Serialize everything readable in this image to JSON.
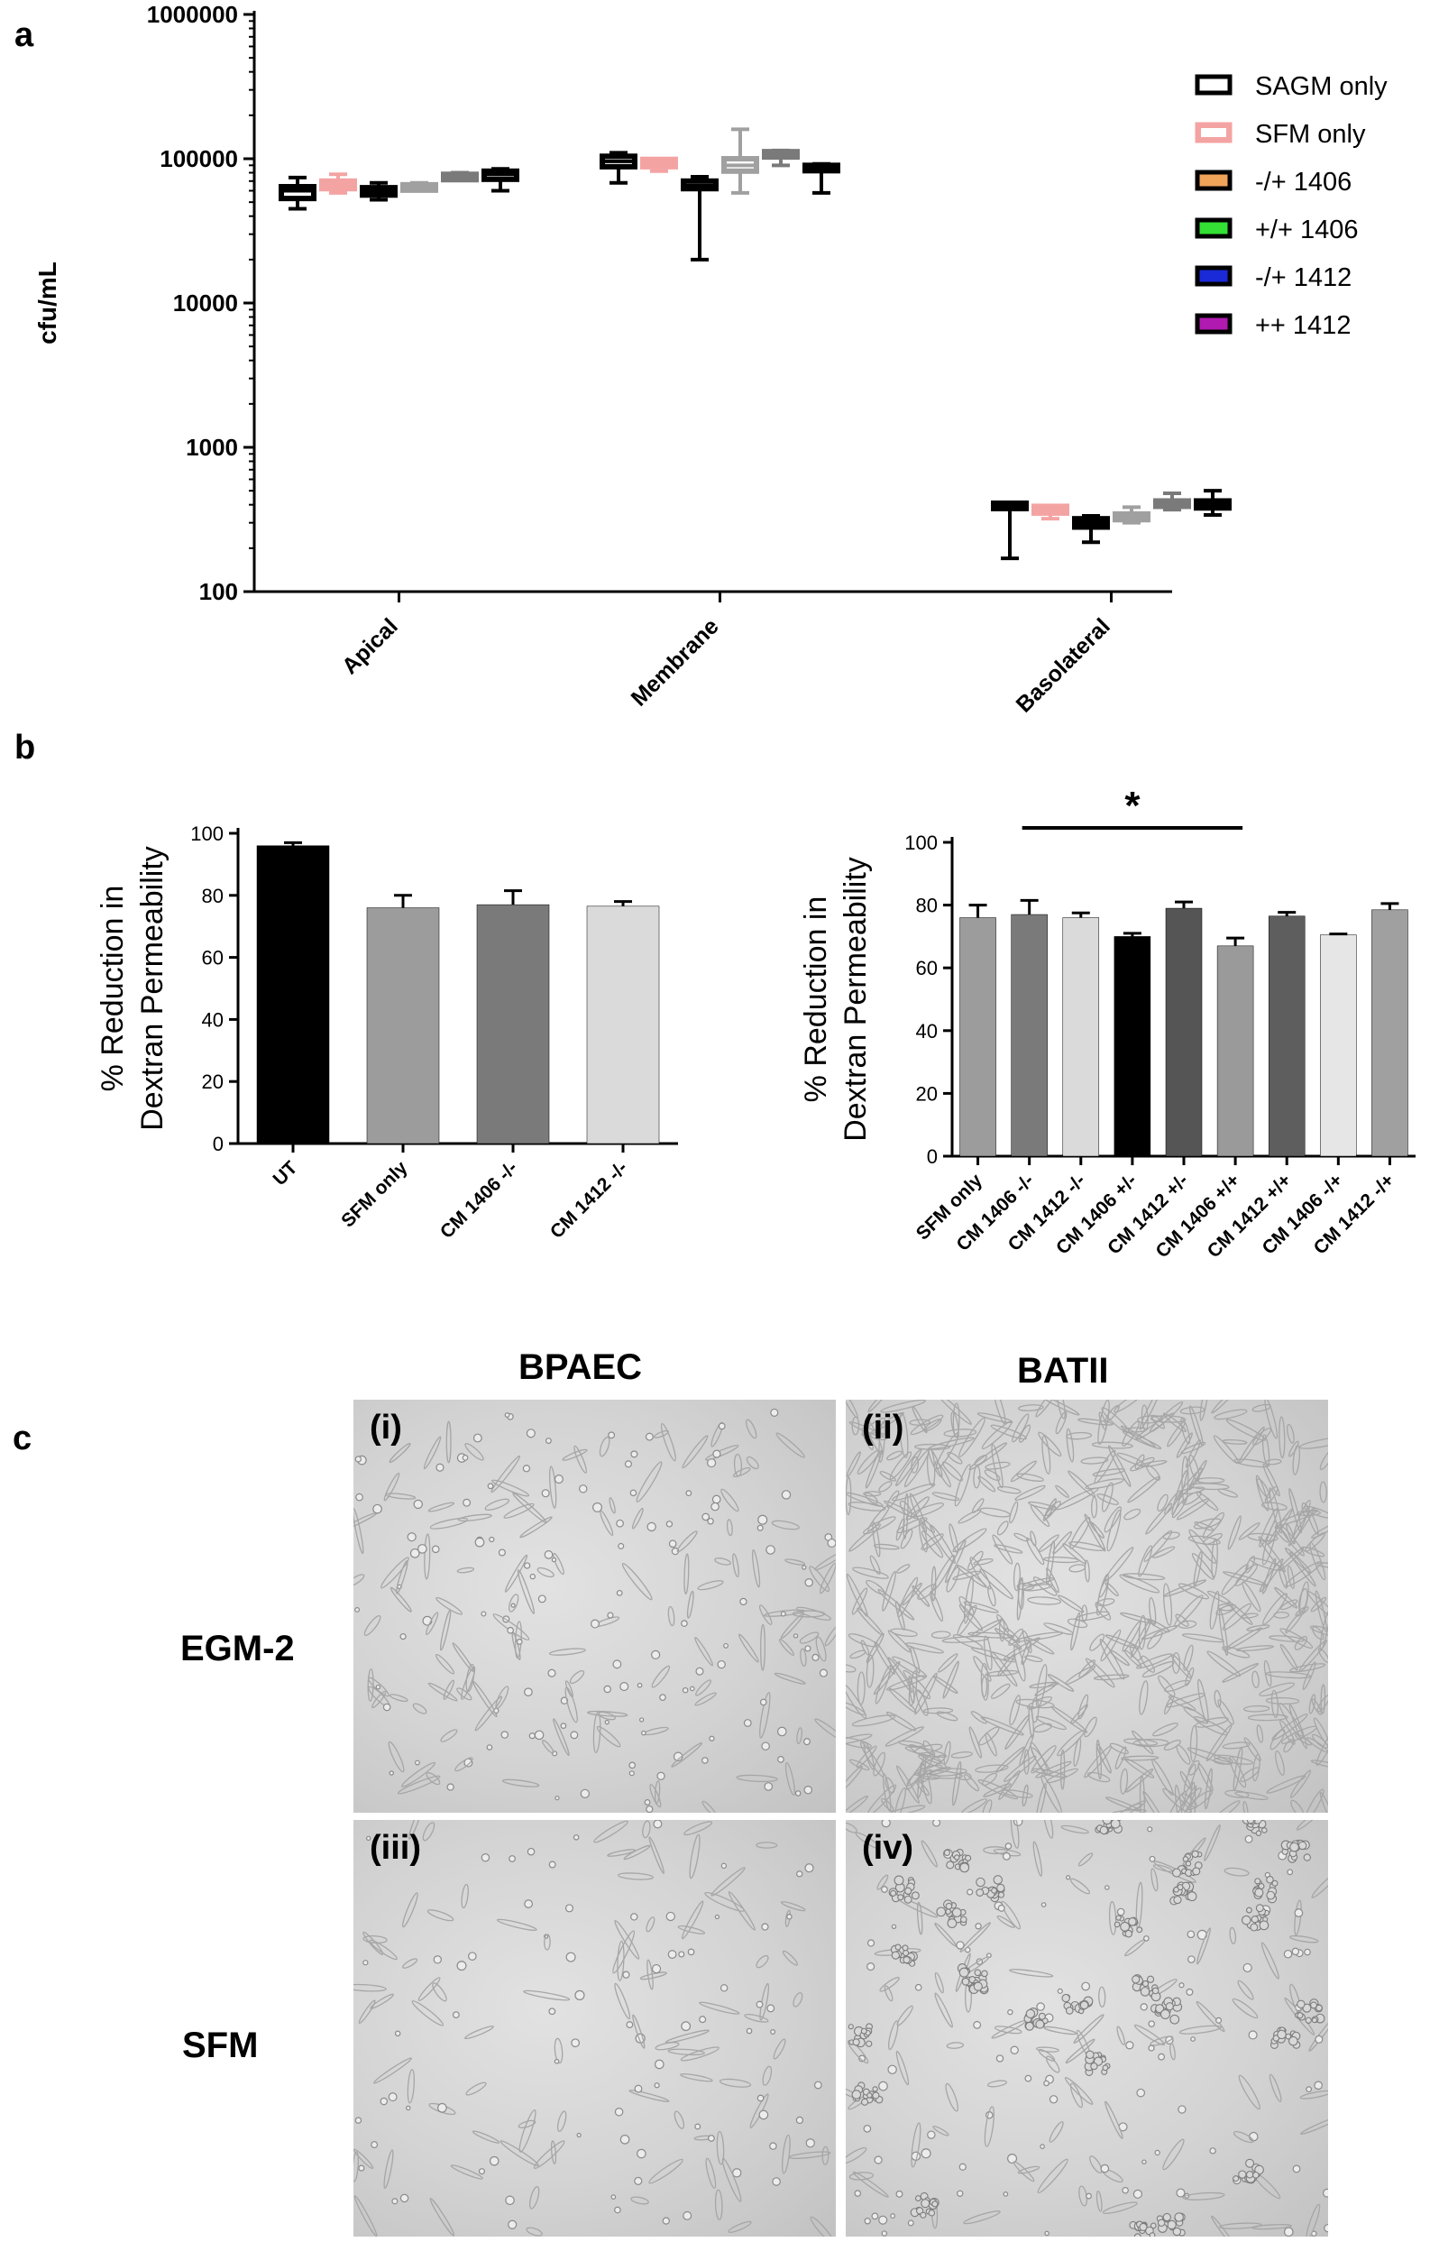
{
  "panels": {
    "a": "a",
    "b": "b",
    "c": "c"
  },
  "chart_data": [
    {
      "id": "a",
      "type": "box",
      "ylabel": "cfu/mL",
      "yscale": "log",
      "ylim": [
        100,
        1000000
      ],
      "yticks": [
        "100",
        "1000",
        "10000",
        "100000",
        "1000000"
      ],
      "categories": [
        "Apical",
        "Membrane",
        "Basolateral"
      ],
      "legend_position": "top-right",
      "series": [
        {
          "name": "SAGM only",
          "color": "#000000",
          "boxes": [
            {
              "min": 45000,
              "q1": 53000,
              "median": 60000,
              "q3": 64000,
              "max": 74000
            },
            {
              "min": 68000,
              "q1": 88000,
              "median": 96000,
              "q3": 104000,
              "max": 110000
            },
            {
              "min": 170,
              "q1": 395,
              "median": 400,
              "q3": 410,
              "max": 415
            }
          ]
        },
        {
          "name": "SFM only",
          "color": "#f4a3a3",
          "boxes": [
            {
              "min": 58000,
              "q1": 62000,
              "median": 66000,
              "q3": 70000,
              "max": 78000
            },
            {
              "min": 82000,
              "q1": 88000,
              "median": 94000,
              "q3": 99000,
              "max": 100000
            },
            {
              "min": 320,
              "q1": 350,
              "median": 370,
              "q3": 390,
              "max": 395
            }
          ]
        },
        {
          "name": "-/+ 1406",
          "color": "#000000",
          "boxes": [
            {
              "min": 52000,
              "q1": 56000,
              "median": 60000,
              "q3": 63000,
              "max": 68000
            },
            {
              "min": 20000,
              "q1": 62000,
              "median": 65000,
              "q3": 70000,
              "max": 75000
            },
            {
              "min": 220,
              "q1": 280,
              "median": 300,
              "q3": 320,
              "max": 335
            }
          ]
        },
        {
          "name": "+/+ 1406",
          "color": "#a0a0a0",
          "boxes": [
            {
              "min": 60000,
              "q1": 62000,
              "median": 64000,
              "q3": 66000,
              "max": 68000
            },
            {
              "min": 58000,
              "q1": 82000,
              "median": 90000,
              "q3": 100000,
              "max": 160000
            },
            {
              "min": 300,
              "q1": 315,
              "median": 325,
              "q3": 345,
              "max": 385
            }
          ]
        },
        {
          "name": "-/+ 1412",
          "color": "#7a7a7a",
          "boxes": [
            {
              "min": 72000,
              "q1": 74000,
              "median": 76000,
              "q3": 78000,
              "max": 80000
            },
            {
              "min": 90000,
              "q1": 103000,
              "median": 108000,
              "q3": 112000,
              "max": 114000
            },
            {
              "min": 370,
              "q1": 395,
              "median": 410,
              "q3": 425,
              "max": 480
            }
          ]
        },
        {
          "name": "++ 1412",
          "color": "#000000",
          "boxes": [
            {
              "min": 60000,
              "q1": 72000,
              "median": 78000,
              "q3": 82000,
              "max": 85000
            },
            {
              "min": 58000,
              "q1": 86000,
              "median": 88000,
              "q3": 90000,
              "max": 92000
            },
            {
              "min": 340,
              "q1": 380,
              "median": 400,
              "q3": 425,
              "max": 500
            }
          ]
        }
      ],
      "legend_swatch_colors": [
        "#000000",
        "#f4a3a3",
        "#f0a45a",
        "#33e033",
        "#1a2ad8",
        "#b01ab0"
      ]
    },
    {
      "id": "b-left",
      "type": "bar",
      "ylabel_line1": "% Reduction in",
      "ylabel_line2": "Dextran Permeability",
      "ylim": [
        0,
        100
      ],
      "yticks": [
        "0",
        "20",
        "40",
        "60",
        "80",
        "100"
      ],
      "categories": [
        "UT",
        "SFM only",
        "CM 1406 -/-",
        "CM 1412 -/-"
      ],
      "values": [
        96,
        76,
        77,
        76.5
      ],
      "errors": [
        1,
        4,
        4.5,
        1.5
      ],
      "colors": [
        "#000000",
        "#9c9c9c",
        "#7a7a7a",
        "#dadada"
      ]
    },
    {
      "id": "b-right",
      "type": "bar",
      "ylabel_line1": "% Reduction in",
      "ylabel_line2": "Dextran Permeability",
      "ylim": [
        0,
        100
      ],
      "yticks": [
        "0",
        "20",
        "40",
        "60",
        "80",
        "100"
      ],
      "categories": [
        "SFM only",
        "CM 1406 -/-",
        "CM 1412 -/-",
        "CM 1406 +/-",
        "CM 1412 +/-",
        "CM 1406 +/+",
        "CM 1412 +/+",
        "CM 1406 -/+",
        "CM 1412 -/+"
      ],
      "values": [
        76,
        77,
        76,
        70,
        79,
        67,
        76.5,
        70.5,
        78.5
      ],
      "errors": [
        4,
        4.5,
        1.5,
        1,
        2,
        2.5,
        1.2,
        0.3,
        2
      ],
      "colors": [
        "#9c9c9c",
        "#7a7a7a",
        "#dadada",
        "#000000",
        "#555555",
        "#9a9a9a",
        "#5e5e5e",
        "#e6e6e6",
        "#a0a0a0"
      ],
      "annotation": "*",
      "annotation_span": [
        "CM 1406 -/-",
        "CM 1406 +/+"
      ]
    }
  ],
  "micrographs": {
    "columns": [
      "BPAEC",
      "BATII"
    ],
    "rows": [
      "EGM-2",
      "SFM"
    ],
    "panels": [
      "(i)",
      "(ii)",
      "(iii)",
      "(iv)"
    ]
  }
}
